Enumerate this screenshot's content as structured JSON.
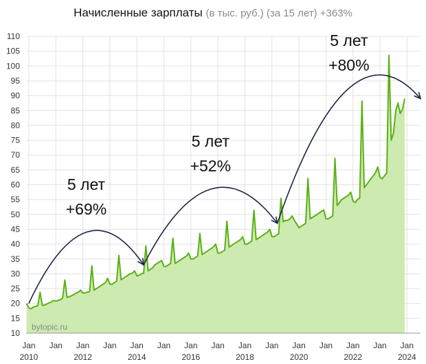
{
  "title": "Начисленные зарплаты",
  "subtitle": "(в тыс. руб.) (за 15 лет) +363%",
  "watermark": "bytopic.ru",
  "colors": {
    "line": "#5bb014",
    "fill": "#cdeab0",
    "grid": "#e2e2e2",
    "arrow": "#1c2545"
  },
  "chart_data": {
    "type": "area",
    "title": "Начисленные зарплаты",
    "subtitle": "(в тыс. руб.) (за 15 лет) +363%",
    "xlabel": "",
    "ylabel": "",
    "ylim": [
      10,
      110
    ],
    "xlim": [
      2009.9,
      2024.5
    ],
    "grid": true,
    "yticks": [
      10,
      15,
      20,
      25,
      30,
      35,
      40,
      45,
      50,
      55,
      60,
      65,
      70,
      75,
      80,
      85,
      90,
      95,
      100,
      105,
      110
    ],
    "xticks": [
      {
        "x": 2010,
        "top": "Jan",
        "bottom": "2010"
      },
      {
        "x": 2011,
        "top": "Jan",
        "bottom": ""
      },
      {
        "x": 2012,
        "top": "Jan",
        "bottom": "2012"
      },
      {
        "x": 2013,
        "top": "Jan",
        "bottom": ""
      },
      {
        "x": 2014,
        "top": "Jan",
        "bottom": "2014"
      },
      {
        "x": 2015,
        "top": "Jan",
        "bottom": ""
      },
      {
        "x": 2016,
        "top": "Jan",
        "bottom": "2016"
      },
      {
        "x": 2017,
        "top": "Jan",
        "bottom": ""
      },
      {
        "x": 2018,
        "top": "Jan",
        "bottom": "2018"
      },
      {
        "x": 2019,
        "top": "Jan",
        "bottom": ""
      },
      {
        "x": 2020,
        "top": "Jan",
        "bottom": "2020"
      },
      {
        "x": 2021,
        "top": "Jan",
        "bottom": ""
      },
      {
        "x": 2022,
        "top": "Jan",
        "bottom": "2022"
      },
      {
        "x": 2023,
        "top": "Jan",
        "bottom": ""
      },
      {
        "x": 2024,
        "top": "Jan",
        "bottom": "2024"
      }
    ],
    "series": [
      {
        "start": "2009-12",
        "values": [
          20.0,
          18.5,
          18.2,
          18.8,
          19.0,
          19.3,
          23.8,
          19.3,
          19.5,
          19.8,
          20.2,
          20.5,
          21.0,
          20.8,
          21.0,
          21.3,
          21.8,
          27.9,
          22.0,
          22.3,
          22.6,
          23.0,
          23.5,
          23.8,
          24.5,
          23.5,
          23.5,
          23.8,
          24.0,
          32.7,
          24.5,
          25.0,
          25.5,
          26.0,
          26.5,
          27.0,
          28.5,
          26.5,
          26.5,
          27.0,
          27.5,
          36.2,
          28.0,
          28.5,
          29.0,
          29.5,
          30.0,
          30.2,
          31.0,
          29.3,
          29.5,
          30.0,
          30.2,
          39.4,
          31.0,
          31.5,
          32.0,
          33.0,
          33.5,
          34.0,
          34.5,
          32.5,
          32.5,
          33.0,
          33.5,
          42.0,
          33.5,
          34.0,
          34.5,
          35.0,
          35.5,
          36.0,
          37.0,
          35.0,
          35.0,
          35.5,
          36.0,
          43.6,
          36.5,
          37.0,
          37.5,
          38.0,
          38.5,
          39.0,
          40.0,
          37.0,
          37.0,
          37.5,
          38.0,
          47.7,
          39.0,
          39.5,
          40.0,
          40.5,
          41.0,
          41.5,
          42.5,
          40.0,
          40.0,
          40.5,
          41.0,
          51.4,
          41.5,
          42.0,
          42.5,
          43.0,
          43.5,
          44.0,
          45.0,
          42.5,
          42.5,
          43.0,
          43.5,
          55.4,
          47.5,
          48.0,
          48.0,
          48.5,
          49.5,
          48.0,
          46.8,
          45.5,
          46.0,
          46.5,
          47.0,
          62.1,
          48.5,
          49.0,
          49.5,
          50.0,
          50.5,
          51.0,
          51.5,
          48.5,
          48.5,
          49.0,
          49.5,
          68.9,
          53.0,
          54.0,
          55.0,
          55.5,
          56.0,
          56.5,
          57.5,
          54.5,
          54.0,
          55.0,
          55.5,
          88.2,
          59.0,
          60.0,
          61.0,
          62.0,
          63.0,
          64.0,
          66.0,
          62.5,
          62.0,
          63.0,
          64.0,
          103.6,
          75.0,
          77.5,
          85.0,
          87.5,
          84.0,
          85.5,
          89.0
        ]
      }
    ],
    "annotations": [
      {
        "line1": "5 лет",
        "line2": "+69%",
        "from": [
          2010.0,
          20.0
        ],
        "to": [
          2014.25,
          33.0
        ],
        "peak": 44
      },
      {
        "line1": "5 лет",
        "line2": "+52%",
        "from": [
          2014.25,
          33.0
        ],
        "to": [
          2019.2,
          47.0
        ],
        "peak": 58.5
      },
      {
        "line1": "5 лет",
        "line2": "+80%",
        "from": [
          2019.2,
          47.0
        ],
        "to": [
          2024.5,
          89.0
        ],
        "peak": 92.5
      }
    ]
  }
}
